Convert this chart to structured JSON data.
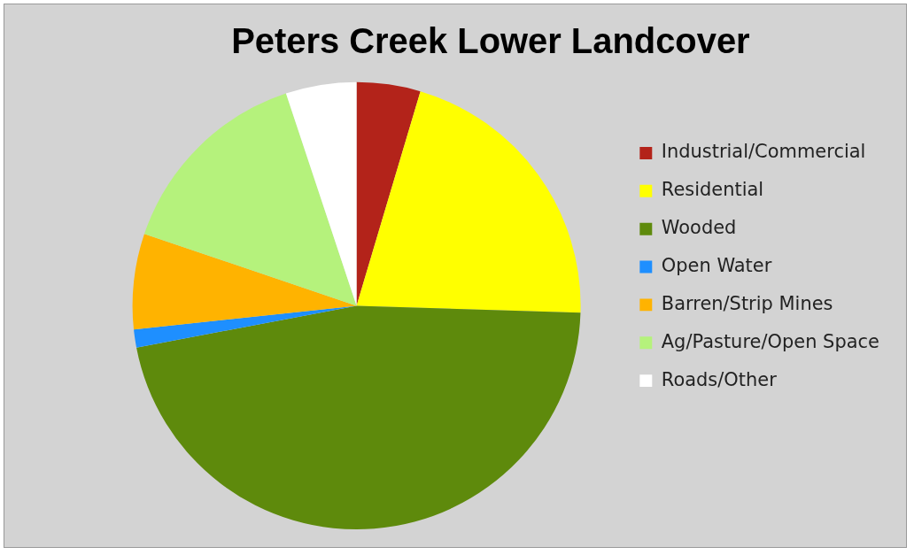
{
  "chart_data": {
    "type": "pie",
    "title": "Peters Creek Lower Landcover",
    "categories": [
      "Industrial/Commercial",
      "Residential",
      "Wooded",
      "Open Water",
      "Barren/Strip Mines",
      "Ag/Pasture/Open Space",
      "Roads/Other"
    ],
    "values": [
      4.6,
      20.9,
      46.5,
      1.3,
      6.9,
      14.7,
      5.1
    ],
    "colors": [
      "#b3231a",
      "#ffff00",
      "#5e8a0c",
      "#1e8fff",
      "#ffb300",
      "#b5f27c",
      "#ffffff"
    ],
    "legend": "right"
  }
}
